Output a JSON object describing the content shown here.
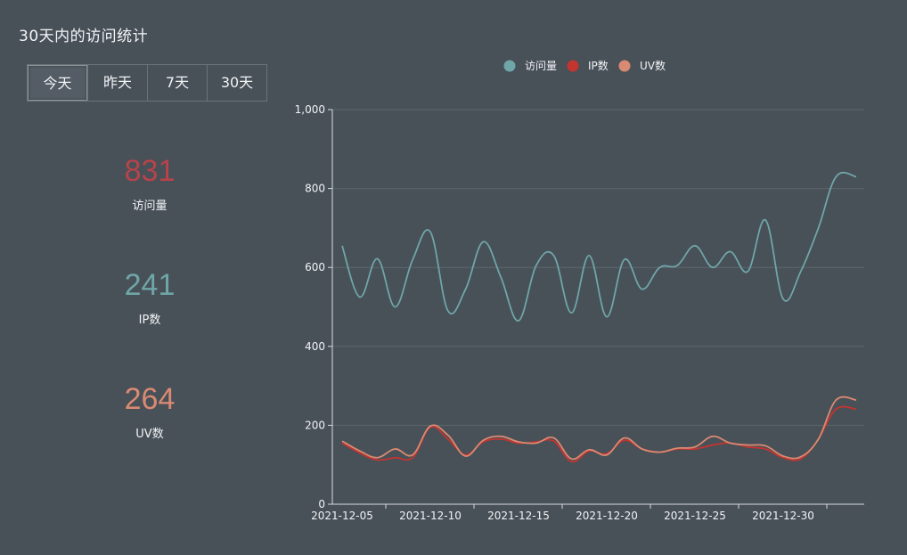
{
  "header": {
    "title": "30天内的访问统计"
  },
  "tabs": [
    {
      "label": "今天",
      "active": true
    },
    {
      "label": "昨天",
      "active": false
    },
    {
      "label": "7天",
      "active": false
    },
    {
      "label": "30天",
      "active": false
    }
  ],
  "stats": [
    {
      "value": "831",
      "label": "访问量",
      "color": "#b8434a"
    },
    {
      "value": "241",
      "label": "IP数",
      "color": "#6fa6a8"
    },
    {
      "value": "264",
      "label": "UV数",
      "color": "#d98a72"
    }
  ],
  "chart_data": {
    "type": "line",
    "title": "",
    "ylim": [
      0,
      1000
    ],
    "yticks": [
      "0",
      "200",
      "400",
      "600",
      "800",
      "1,000"
    ],
    "xticks": [
      "2021-12-05",
      "2021-12-10",
      "2021-12-15",
      "2021-12-20",
      "2021-12-25",
      "2021-12-30"
    ],
    "x": [
      "2021-12-05",
      "2021-12-06",
      "2021-12-07",
      "2021-12-08",
      "2021-12-09",
      "2021-12-10",
      "2021-12-11",
      "2021-12-12",
      "2021-12-13",
      "2021-12-14",
      "2021-12-15",
      "2021-12-16",
      "2021-12-17",
      "2021-12-18",
      "2021-12-19",
      "2021-12-20",
      "2021-12-21",
      "2021-12-22",
      "2021-12-23",
      "2021-12-24",
      "2021-12-25",
      "2021-12-26",
      "2021-12-27",
      "2021-12-28",
      "2021-12-29",
      "2021-12-30",
      "2021-12-31",
      "2022-01-01",
      "2022-01-02",
      "2022-01-03"
    ],
    "legend": [
      "访问量",
      "IP数",
      "UV数"
    ],
    "series": [
      {
        "name": "访问量",
        "color": "#6fa6a8",
        "values": [
          655,
          525,
          622,
          500,
          620,
          690,
          490,
          545,
          665,
          575,
          465,
          605,
          630,
          485,
          630,
          475,
          620,
          545,
          600,
          605,
          655,
          600,
          640,
          590,
          720,
          520,
          590,
          700,
          830,
          830
        ]
      },
      {
        "name": "IP数",
        "color": "#c23531",
        "values": [
          155,
          130,
          112,
          118,
          118,
          195,
          165,
          125,
          158,
          165,
          155,
          158,
          160,
          108,
          135,
          128,
          162,
          140,
          132,
          140,
          140,
          150,
          155,
          145,
          140,
          118,
          115,
          165,
          241,
          241
        ]
      },
      {
        "name": "UV数",
        "color": "#d98a72",
        "values": [
          160,
          135,
          118,
          140,
          125,
          198,
          175,
          122,
          162,
          172,
          158,
          155,
          168,
          115,
          138,
          125,
          168,
          140,
          132,
          142,
          145,
          172,
          155,
          150,
          148,
          122,
          120,
          165,
          264,
          264
        ]
      }
    ]
  }
}
